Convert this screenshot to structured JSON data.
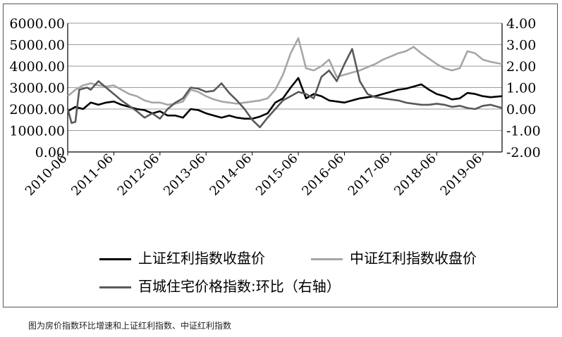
{
  "caption": "图为房价指数环比增速和上证红利指数、中证红利指数",
  "colors": {
    "shanghai": "#000000",
    "csi": "#a6a6a6",
    "house": "#595959",
    "grid": "#9a9a9a",
    "axis": "#000000"
  },
  "chart_data": {
    "type": "line",
    "left_axis": {
      "ticks": [
        "0.00",
        "1000.00",
        "2000.00",
        "3000.00",
        "4000.00",
        "5000.00",
        "6000.00"
      ],
      "ylim": [
        0,
        6000
      ]
    },
    "right_axis": {
      "ticks": [
        "-2.00",
        "-1.00",
        "0.00",
        "1.00",
        "2.00",
        "3.00",
        "4.00"
      ],
      "ylim": [
        -2,
        4
      ]
    },
    "x_ticks": [
      "2010-06",
      "2011-06",
      "2012-06",
      "2013-06",
      "2014-06",
      "2015-06",
      "2016-06",
      "2017-06",
      "2018-06",
      "2019-06"
    ],
    "grid": "horizontal",
    "legend_position": "bottom",
    "series": [
      {
        "name": "上证红利指数收盘价",
        "axis": "left",
        "points": [
          [
            0,
            1900
          ],
          [
            2,
            2100
          ],
          [
            4,
            2000
          ],
          [
            6,
            2300
          ],
          [
            8,
            2200
          ],
          [
            10,
            2300
          ],
          [
            12,
            2350
          ],
          [
            14,
            2200
          ],
          [
            16,
            2100
          ],
          [
            18,
            2000
          ],
          [
            20,
            1950
          ],
          [
            22,
            1800
          ],
          [
            24,
            1900
          ],
          [
            26,
            1700
          ],
          [
            28,
            1700
          ],
          [
            30,
            1600
          ],
          [
            32,
            2000
          ],
          [
            34,
            1950
          ],
          [
            36,
            1800
          ],
          [
            38,
            1700
          ],
          [
            40,
            1600
          ],
          [
            42,
            1700
          ],
          [
            44,
            1600
          ],
          [
            46,
            1550
          ],
          [
            48,
            1550
          ],
          [
            50,
            1650
          ],
          [
            52,
            1800
          ],
          [
            54,
            2300
          ],
          [
            56,
            2500
          ],
          [
            58,
            3000
          ],
          [
            60,
            3450
          ],
          [
            62,
            2500
          ],
          [
            64,
            2700
          ],
          [
            66,
            2600
          ],
          [
            68,
            2400
          ],
          [
            70,
            2350
          ],
          [
            72,
            2300
          ],
          [
            74,
            2400
          ],
          [
            76,
            2500
          ],
          [
            78,
            2550
          ],
          [
            80,
            2600
          ],
          [
            82,
            2700
          ],
          [
            84,
            2800
          ],
          [
            86,
            2900
          ],
          [
            88,
            2950
          ],
          [
            90,
            3050
          ],
          [
            92,
            3150
          ],
          [
            94,
            2900
          ],
          [
            96,
            2700
          ],
          [
            98,
            2600
          ],
          [
            100,
            2450
          ],
          [
            102,
            2500
          ],
          [
            104,
            2750
          ],
          [
            106,
            2700
          ],
          [
            108,
            2600
          ],
          [
            110,
            2550
          ],
          [
            113,
            2600
          ]
        ]
      },
      {
        "name": "中证红利指数收盘价",
        "axis": "left",
        "points": [
          [
            0,
            2600
          ],
          [
            2,
            2900
          ],
          [
            4,
            3100
          ],
          [
            6,
            3200
          ],
          [
            8,
            3100
          ],
          [
            10,
            3050
          ],
          [
            12,
            3100
          ],
          [
            14,
            2900
          ],
          [
            16,
            2700
          ],
          [
            18,
            2600
          ],
          [
            20,
            2400
          ],
          [
            22,
            2300
          ],
          [
            24,
            2300
          ],
          [
            26,
            2200
          ],
          [
            28,
            2250
          ],
          [
            30,
            2350
          ],
          [
            32,
            2900
          ],
          [
            34,
            2800
          ],
          [
            36,
            2600
          ],
          [
            38,
            2450
          ],
          [
            40,
            2350
          ],
          [
            42,
            2300
          ],
          [
            44,
            2250
          ],
          [
            46,
            2300
          ],
          [
            48,
            2350
          ],
          [
            50,
            2400
          ],
          [
            52,
            2500
          ],
          [
            54,
            2900
          ],
          [
            56,
            3600
          ],
          [
            58,
            4600
          ],
          [
            60,
            5300
          ],
          [
            62,
            3900
          ],
          [
            64,
            3800
          ],
          [
            66,
            4000
          ],
          [
            68,
            4300
          ],
          [
            70,
            3500
          ],
          [
            72,
            3600
          ],
          [
            74,
            3700
          ],
          [
            76,
            3800
          ],
          [
            78,
            3950
          ],
          [
            80,
            4100
          ],
          [
            82,
            4300
          ],
          [
            84,
            4450
          ],
          [
            86,
            4600
          ],
          [
            88,
            4700
          ],
          [
            90,
            4900
          ],
          [
            92,
            4600
          ],
          [
            94,
            4350
          ],
          [
            96,
            4100
          ],
          [
            98,
            3900
          ],
          [
            100,
            3800
          ],
          [
            102,
            3900
          ],
          [
            104,
            4700
          ],
          [
            106,
            4600
          ],
          [
            108,
            4300
          ],
          [
            110,
            4200
          ],
          [
            113,
            4100
          ]
        ]
      },
      {
        "name": "百城住宅价格指数:环比（右轴）",
        "axis": "right",
        "points": [
          [
            0,
            0.0
          ],
          [
            1,
            -0.65
          ],
          [
            2,
            -0.6
          ],
          [
            3,
            0.9
          ],
          [
            4,
            0.95
          ],
          [
            5,
            1.0
          ],
          [
            6,
            0.9
          ],
          [
            7,
            1.1
          ],
          [
            8,
            1.3
          ],
          [
            10,
            1.0
          ],
          [
            12,
            0.7
          ],
          [
            14,
            0.4
          ],
          [
            16,
            0.15
          ],
          [
            18,
            -0.1
          ],
          [
            20,
            -0.4
          ],
          [
            22,
            -0.2
          ],
          [
            24,
            -0.45
          ],
          [
            26,
            0.0
          ],
          [
            28,
            0.3
          ],
          [
            30,
            0.5
          ],
          [
            32,
            1.0
          ],
          [
            34,
            0.95
          ],
          [
            36,
            0.8
          ],
          [
            38,
            0.85
          ],
          [
            40,
            1.2
          ],
          [
            42,
            0.75
          ],
          [
            44,
            0.4
          ],
          [
            46,
            0.0
          ],
          [
            48,
            -0.5
          ],
          [
            50,
            -0.85
          ],
          [
            52,
            -0.4
          ],
          [
            54,
            0.0
          ],
          [
            56,
            0.4
          ],
          [
            58,
            0.6
          ],
          [
            60,
            0.8
          ],
          [
            62,
            0.7
          ],
          [
            64,
            0.5
          ],
          [
            66,
            1.5
          ],
          [
            68,
            1.8
          ],
          [
            70,
            1.3
          ],
          [
            72,
            2.1
          ],
          [
            74,
            2.8
          ],
          [
            76,
            1.3
          ],
          [
            78,
            0.7
          ],
          [
            80,
            0.55
          ],
          [
            82,
            0.5
          ],
          [
            84,
            0.45
          ],
          [
            86,
            0.4
          ],
          [
            88,
            0.3
          ],
          [
            90,
            0.25
          ],
          [
            92,
            0.2
          ],
          [
            94,
            0.2
          ],
          [
            96,
            0.25
          ],
          [
            98,
            0.2
          ],
          [
            100,
            0.1
          ],
          [
            102,
            0.15
          ],
          [
            104,
            0.05
          ],
          [
            106,
            0.0
          ],
          [
            108,
            0.15
          ],
          [
            110,
            0.2
          ],
          [
            113,
            0.05
          ]
        ]
      }
    ]
  }
}
